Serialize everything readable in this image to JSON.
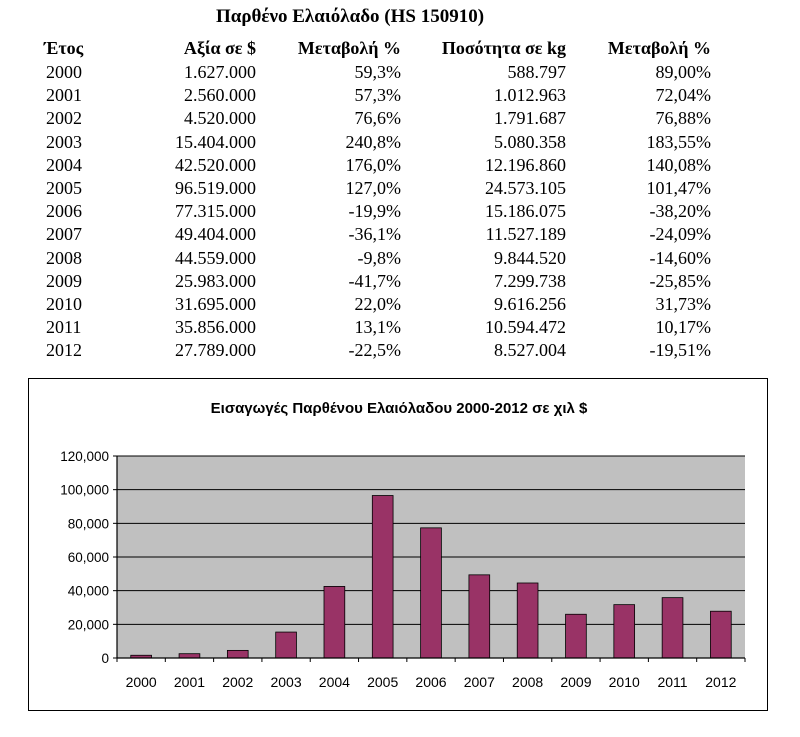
{
  "table": {
    "title": "Παρθένο Ελαιόλαδο (HS 150910)",
    "headers": [
      "Έτος",
      "Αξία σε $",
      "Μεταβολή %",
      "Ποσότητα σε kg",
      "Μεταβολή %"
    ],
    "rows": [
      [
        "2000",
        "1.627.000",
        "59,3%",
        "588.797",
        "89,00%"
      ],
      [
        "2001",
        "2.560.000",
        "57,3%",
        "1.012.963",
        "72,04%"
      ],
      [
        "2002",
        "4.520.000",
        "76,6%",
        "1.791.687",
        "76,88%"
      ],
      [
        "2003",
        "15.404.000",
        "240,8%",
        "5.080.358",
        "183,55%"
      ],
      [
        "2004",
        "42.520.000",
        "176,0%",
        "12.196.860",
        "140,08%"
      ],
      [
        "2005",
        "96.519.000",
        "127,0%",
        "24.573.105",
        "101,47%"
      ],
      [
        "2006",
        "77.315.000",
        "-19,9%",
        "15.186.075",
        "-38,20%"
      ],
      [
        "2007",
        "49.404.000",
        "-36,1%",
        "11.527.189",
        "-24,09%"
      ],
      [
        "2008",
        "44.559.000",
        "-9,8%",
        "9.844.520",
        "-14,60%"
      ],
      [
        "2009",
        "25.983.000",
        "-41,7%",
        "7.299.738",
        "-25,85%"
      ],
      [
        "2010",
        "31.695.000",
        "22,0%",
        "9.616.256",
        "31,73%"
      ],
      [
        "2011",
        "35.856.000",
        "13,1%",
        "10.594.472",
        "10,17%"
      ],
      [
        "2012",
        "27.789.000",
        "-22,5%",
        "8.527.004",
        "-19,51%"
      ]
    ]
  },
  "chart_data": {
    "type": "bar",
    "title": "Εισαγωγές Παρθένου Ελαιόλαδου 2000-2012 σε χιλ $",
    "xlabel": "",
    "ylabel": "",
    "categories": [
      "2000",
      "2001",
      "2002",
      "2003",
      "2004",
      "2005",
      "2006",
      "2007",
      "2008",
      "2009",
      "2010",
      "2011",
      "2012"
    ],
    "values": [
      1627,
      2560,
      4520,
      15404,
      42520,
      96519,
      77315,
      49404,
      44559,
      25983,
      31695,
      35856,
      27789
    ],
    "ylim": [
      0,
      120000
    ],
    "yticks": [
      "0",
      "20,000",
      "40,000",
      "60,000",
      "80,000",
      "100,000",
      "120,000"
    ],
    "grid": true,
    "legend": "none",
    "colors": {
      "bar": "#993366",
      "plot_bg": "#c0c0c0"
    }
  }
}
